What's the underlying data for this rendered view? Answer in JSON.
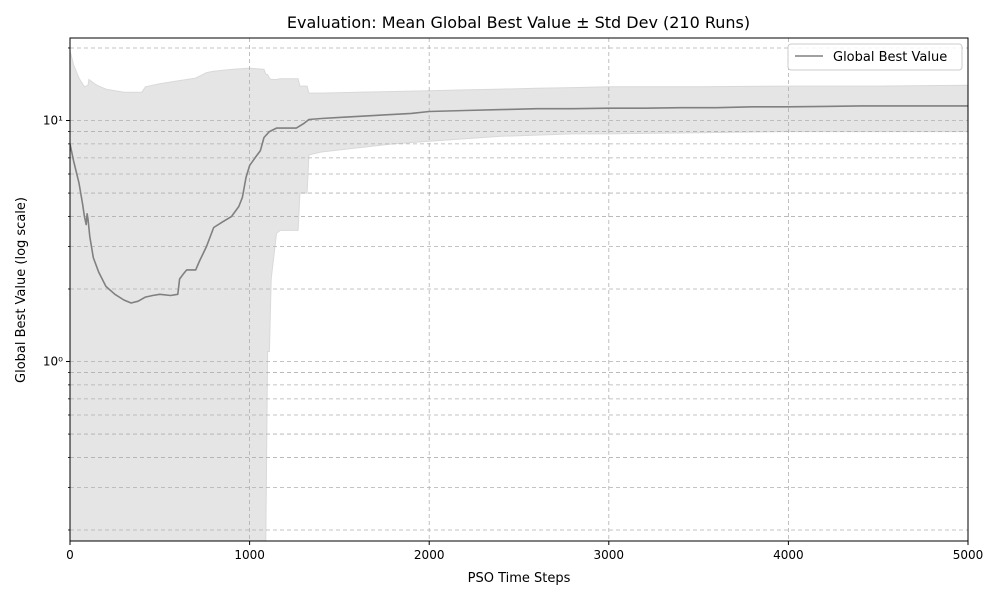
{
  "chart_data": {
    "type": "line",
    "title": "Evaluation: Mean Global Best Value ± Std Dev (210 Runs)",
    "xlabel": "PSO Time Steps",
    "ylabel": "Global Best Value (log scale)",
    "xlim": [
      0,
      5000
    ],
    "ylim": [
      0.18,
      22
    ],
    "yscale": "log",
    "grid": true,
    "legend_position": "top-right",
    "x_ticks": [
      0,
      1000,
      2000,
      3000,
      4000,
      5000
    ],
    "x_tick_labels": [
      "0",
      "1000",
      "2000",
      "3000",
      "4000",
      "5000"
    ],
    "y_major_ticks": [
      1,
      10
    ],
    "y_tick_labels": [
      "10⁰",
      "10¹"
    ],
    "y_minor_ticks": [
      0.2,
      0.3,
      0.4,
      0.5,
      0.6,
      0.7,
      0.8,
      0.9,
      2,
      3,
      4,
      5,
      6,
      7,
      8,
      9,
      20
    ],
    "colors": {
      "line": "#808080",
      "band": "#e5e5e5",
      "band_edge": "#d9d9d9",
      "grid": "#b0b0b0"
    },
    "series": [
      {
        "name": "Global Best Value",
        "x": [
          0,
          20,
          50,
          70,
          80,
          90,
          95,
          100,
          110,
          130,
          160,
          200,
          250,
          300,
          340,
          380,
          420,
          460,
          500,
          560,
          600,
          610,
          630,
          650,
          700,
          720,
          760,
          800,
          850,
          900,
          940,
          960,
          980,
          1000,
          1030,
          1060,
          1080,
          1110,
          1150,
          1200,
          1260,
          1300,
          1330,
          1400,
          1500,
          1600,
          1700,
          1800,
          1900,
          2000,
          2200,
          2400,
          2600,
          2800,
          3000,
          3200,
          3400,
          3600,
          3800,
          4000,
          4200,
          4400,
          4600,
          4800,
          5000
        ],
        "y": [
          8.0,
          6.8,
          5.5,
          4.5,
          4.0,
          3.7,
          4.1,
          3.9,
          3.3,
          2.7,
          2.35,
          2.05,
          1.9,
          1.8,
          1.75,
          1.78,
          1.85,
          1.88,
          1.9,
          1.88,
          1.9,
          2.2,
          2.3,
          2.4,
          2.4,
          2.6,
          3.0,
          3.6,
          3.8,
          4.0,
          4.4,
          4.8,
          5.8,
          6.5,
          7.0,
          7.5,
          8.5,
          9.0,
          9.3,
          9.3,
          9.3,
          9.7,
          10.1,
          10.2,
          10.3,
          10.4,
          10.5,
          10.6,
          10.7,
          10.9,
          11.0,
          11.1,
          11.2,
          11.2,
          11.25,
          11.25,
          11.3,
          11.3,
          11.4,
          11.4,
          11.45,
          11.5,
          11.5,
          11.5,
          11.5
        ]
      }
    ],
    "std_band": {
      "x": [
        0,
        20,
        50,
        80,
        100,
        105,
        150,
        200,
        250,
        300,
        400,
        420,
        500,
        600,
        700,
        760,
        800,
        900,
        1000,
        1080,
        1090,
        1100,
        1110,
        1120,
        1150,
        1170,
        1270,
        1280,
        1320,
        1330,
        1400,
        1600,
        1800,
        2000,
        2200,
        2400,
        2600,
        2800,
        3000,
        3500,
        4000,
        4500,
        5000
      ],
      "upper": [
        19.5,
        17.0,
        15.0,
        13.8,
        14.0,
        14.8,
        14.0,
        13.5,
        13.3,
        13.1,
        13.1,
        13.8,
        14.2,
        14.6,
        15.0,
        15.8,
        16.0,
        16.3,
        16.5,
        16.3,
        15.6,
        15.5,
        15.0,
        14.8,
        14.8,
        14.9,
        14.9,
        13.9,
        13.9,
        13.0,
        13.0,
        13.1,
        13.2,
        13.3,
        13.4,
        13.5,
        13.6,
        13.7,
        13.8,
        13.8,
        13.9,
        13.9,
        14.0
      ],
      "lower": [
        0.18,
        0.18,
        0.18,
        0.18,
        0.18,
        0.18,
        0.18,
        0.18,
        0.18,
        0.18,
        0.18,
        0.18,
        0.18,
        0.18,
        0.18,
        0.18,
        0.18,
        0.18,
        0.18,
        0.18,
        0.18,
        1.1,
        1.1,
        2.2,
        3.4,
        3.5,
        3.5,
        5.0,
        5.0,
        7.2,
        7.4,
        7.7,
        8.0,
        8.2,
        8.4,
        8.6,
        8.7,
        8.8,
        8.8,
        8.9,
        9.0,
        9.0,
        9.0
      ]
    }
  }
}
